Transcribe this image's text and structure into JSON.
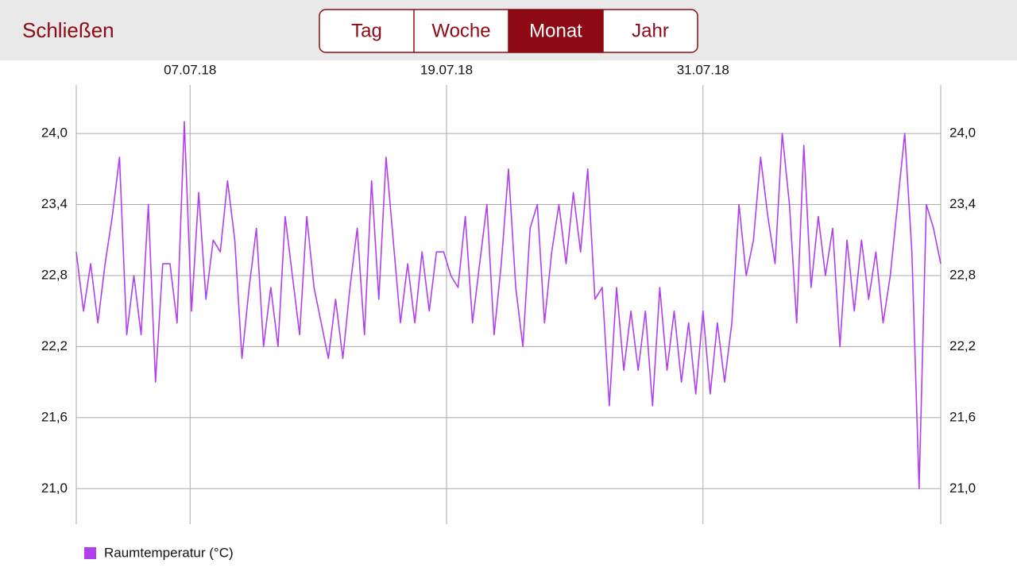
{
  "header": {
    "close": "Schließen",
    "segments": [
      "Tag",
      "Woche",
      "Monat",
      "Jahr"
    ],
    "selected": 2
  },
  "chart_data": {
    "type": "line",
    "series": [
      {
        "name": "Raumtemperatur (°C)",
        "color": "#b040ee",
        "values": [
          23.0,
          22.5,
          22.9,
          22.4,
          22.9,
          23.3,
          23.8,
          22.3,
          22.8,
          22.3,
          23.4,
          21.9,
          22.9,
          22.9,
          22.4,
          24.1,
          22.5,
          23.5,
          22.6,
          23.1,
          23.0,
          23.6,
          23.1,
          22.1,
          22.7,
          23.2,
          22.2,
          22.7,
          22.2,
          23.3,
          22.8,
          22.3,
          23.3,
          22.7,
          22.4,
          22.1,
          22.6,
          22.1,
          22.7,
          23.2,
          22.3,
          23.6,
          22.6,
          23.8,
          23.1,
          22.4,
          22.9,
          22.4,
          23.0,
          22.5,
          23.0,
          23.0,
          22.8,
          22.7,
          23.3,
          22.4,
          22.9,
          23.4,
          22.3,
          22.9,
          23.7,
          22.7,
          22.2,
          23.2,
          23.4,
          22.4,
          23.0,
          23.4,
          22.9,
          23.5,
          23.0,
          23.7,
          22.6,
          22.7,
          21.7,
          22.7,
          22.0,
          22.5,
          22.0,
          22.5,
          21.7,
          22.7,
          22.0,
          22.5,
          21.9,
          22.4,
          21.8,
          22.5,
          21.8,
          22.4,
          21.9,
          22.4,
          23.4,
          22.8,
          23.1,
          23.8,
          23.3,
          22.9,
          24.0,
          23.4,
          22.4,
          23.9,
          22.7,
          23.3,
          22.8,
          23.2,
          22.2,
          23.1,
          22.5,
          23.1,
          22.6,
          23.0,
          22.4,
          22.8,
          23.4,
          24.0,
          23.0,
          21.0,
          23.4,
          23.2,
          22.9
        ]
      }
    ],
    "xlim": [
      0,
      120
    ],
    "xticks": [
      {
        "value": 15.8,
        "label": "07.07.18"
      },
      {
        "value": 51.4,
        "label": "19.07.18"
      },
      {
        "value": 87.0,
        "label": "31.07.18"
      }
    ],
    "ylim": [
      20.7,
      24.41
    ],
    "yticks": [
      {
        "value": 21.0,
        "label": "21,0"
      },
      {
        "value": 21.6,
        "label": "21,6"
      },
      {
        "value": 22.2,
        "label": "22,2"
      },
      {
        "value": 22.8,
        "label": "22,8"
      },
      {
        "value": 23.4,
        "label": "23,4"
      },
      {
        "value": 24.0,
        "label": "24,0"
      }
    ],
    "grid": true
  }
}
